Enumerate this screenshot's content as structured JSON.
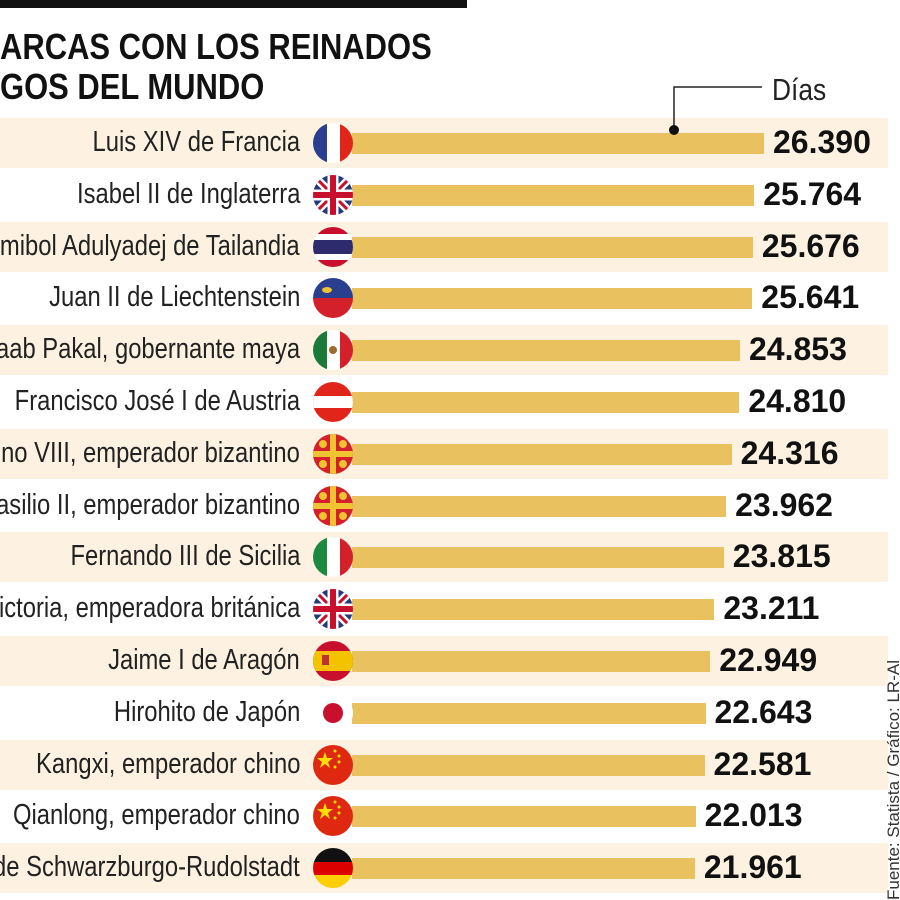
{
  "title_lines": [
    "ARCAS CON LOS REINADOS",
    "GOS DEL MUNDO"
  ],
  "source": "Fuente: Statista / Gráfico: LR-Al",
  "colors": {
    "bar": "#e9c25f",
    "stripe": "#fdf2e1",
    "text": "#111111"
  },
  "chart_data": {
    "type": "bar",
    "orientation": "horizontal",
    "unit_label": "Días",
    "categories": [
      "Luis XIV de Francia",
      "Isabel II de Inglaterra",
      "umibol Adulyadej de Tailandia",
      "Juan II de Liechtenstein",
      "anaab Pakal, gobernante maya",
      "Francisco José I de Austria",
      "tino VIII, emperador bizantino",
      "Basilio II, emperador bizantino",
      "Fernando III de Sicilia",
      "Victoria, emperadora británica",
      "Jaime I de Aragón",
      "Hirohito de Japón",
      "Kangxi, emperador chino",
      "Qianlong, emperador chino",
      "r de Schwarzburgo-Rudolstadt"
    ],
    "values": [
      26390,
      25764,
      25676,
      25641,
      24853,
      24810,
      24316,
      23962,
      23815,
      23211,
      22949,
      22643,
      22581,
      22013,
      21961
    ],
    "value_labels": [
      "26.390",
      "25.764",
      "25.676",
      "25.641",
      "24.853",
      "24.810",
      "24.316",
      "23.962",
      "23.815",
      "23.211",
      "22.949",
      "22.643",
      "22.581",
      "22.013",
      "21.961"
    ],
    "flags": [
      "france",
      "uk",
      "thailand",
      "liechtenstein",
      "mexico",
      "austria",
      "byzantine",
      "byzantine",
      "italy",
      "uk",
      "spain",
      "japan",
      "china",
      "china",
      "germany"
    ],
    "xlim": [
      0,
      26390
    ]
  }
}
